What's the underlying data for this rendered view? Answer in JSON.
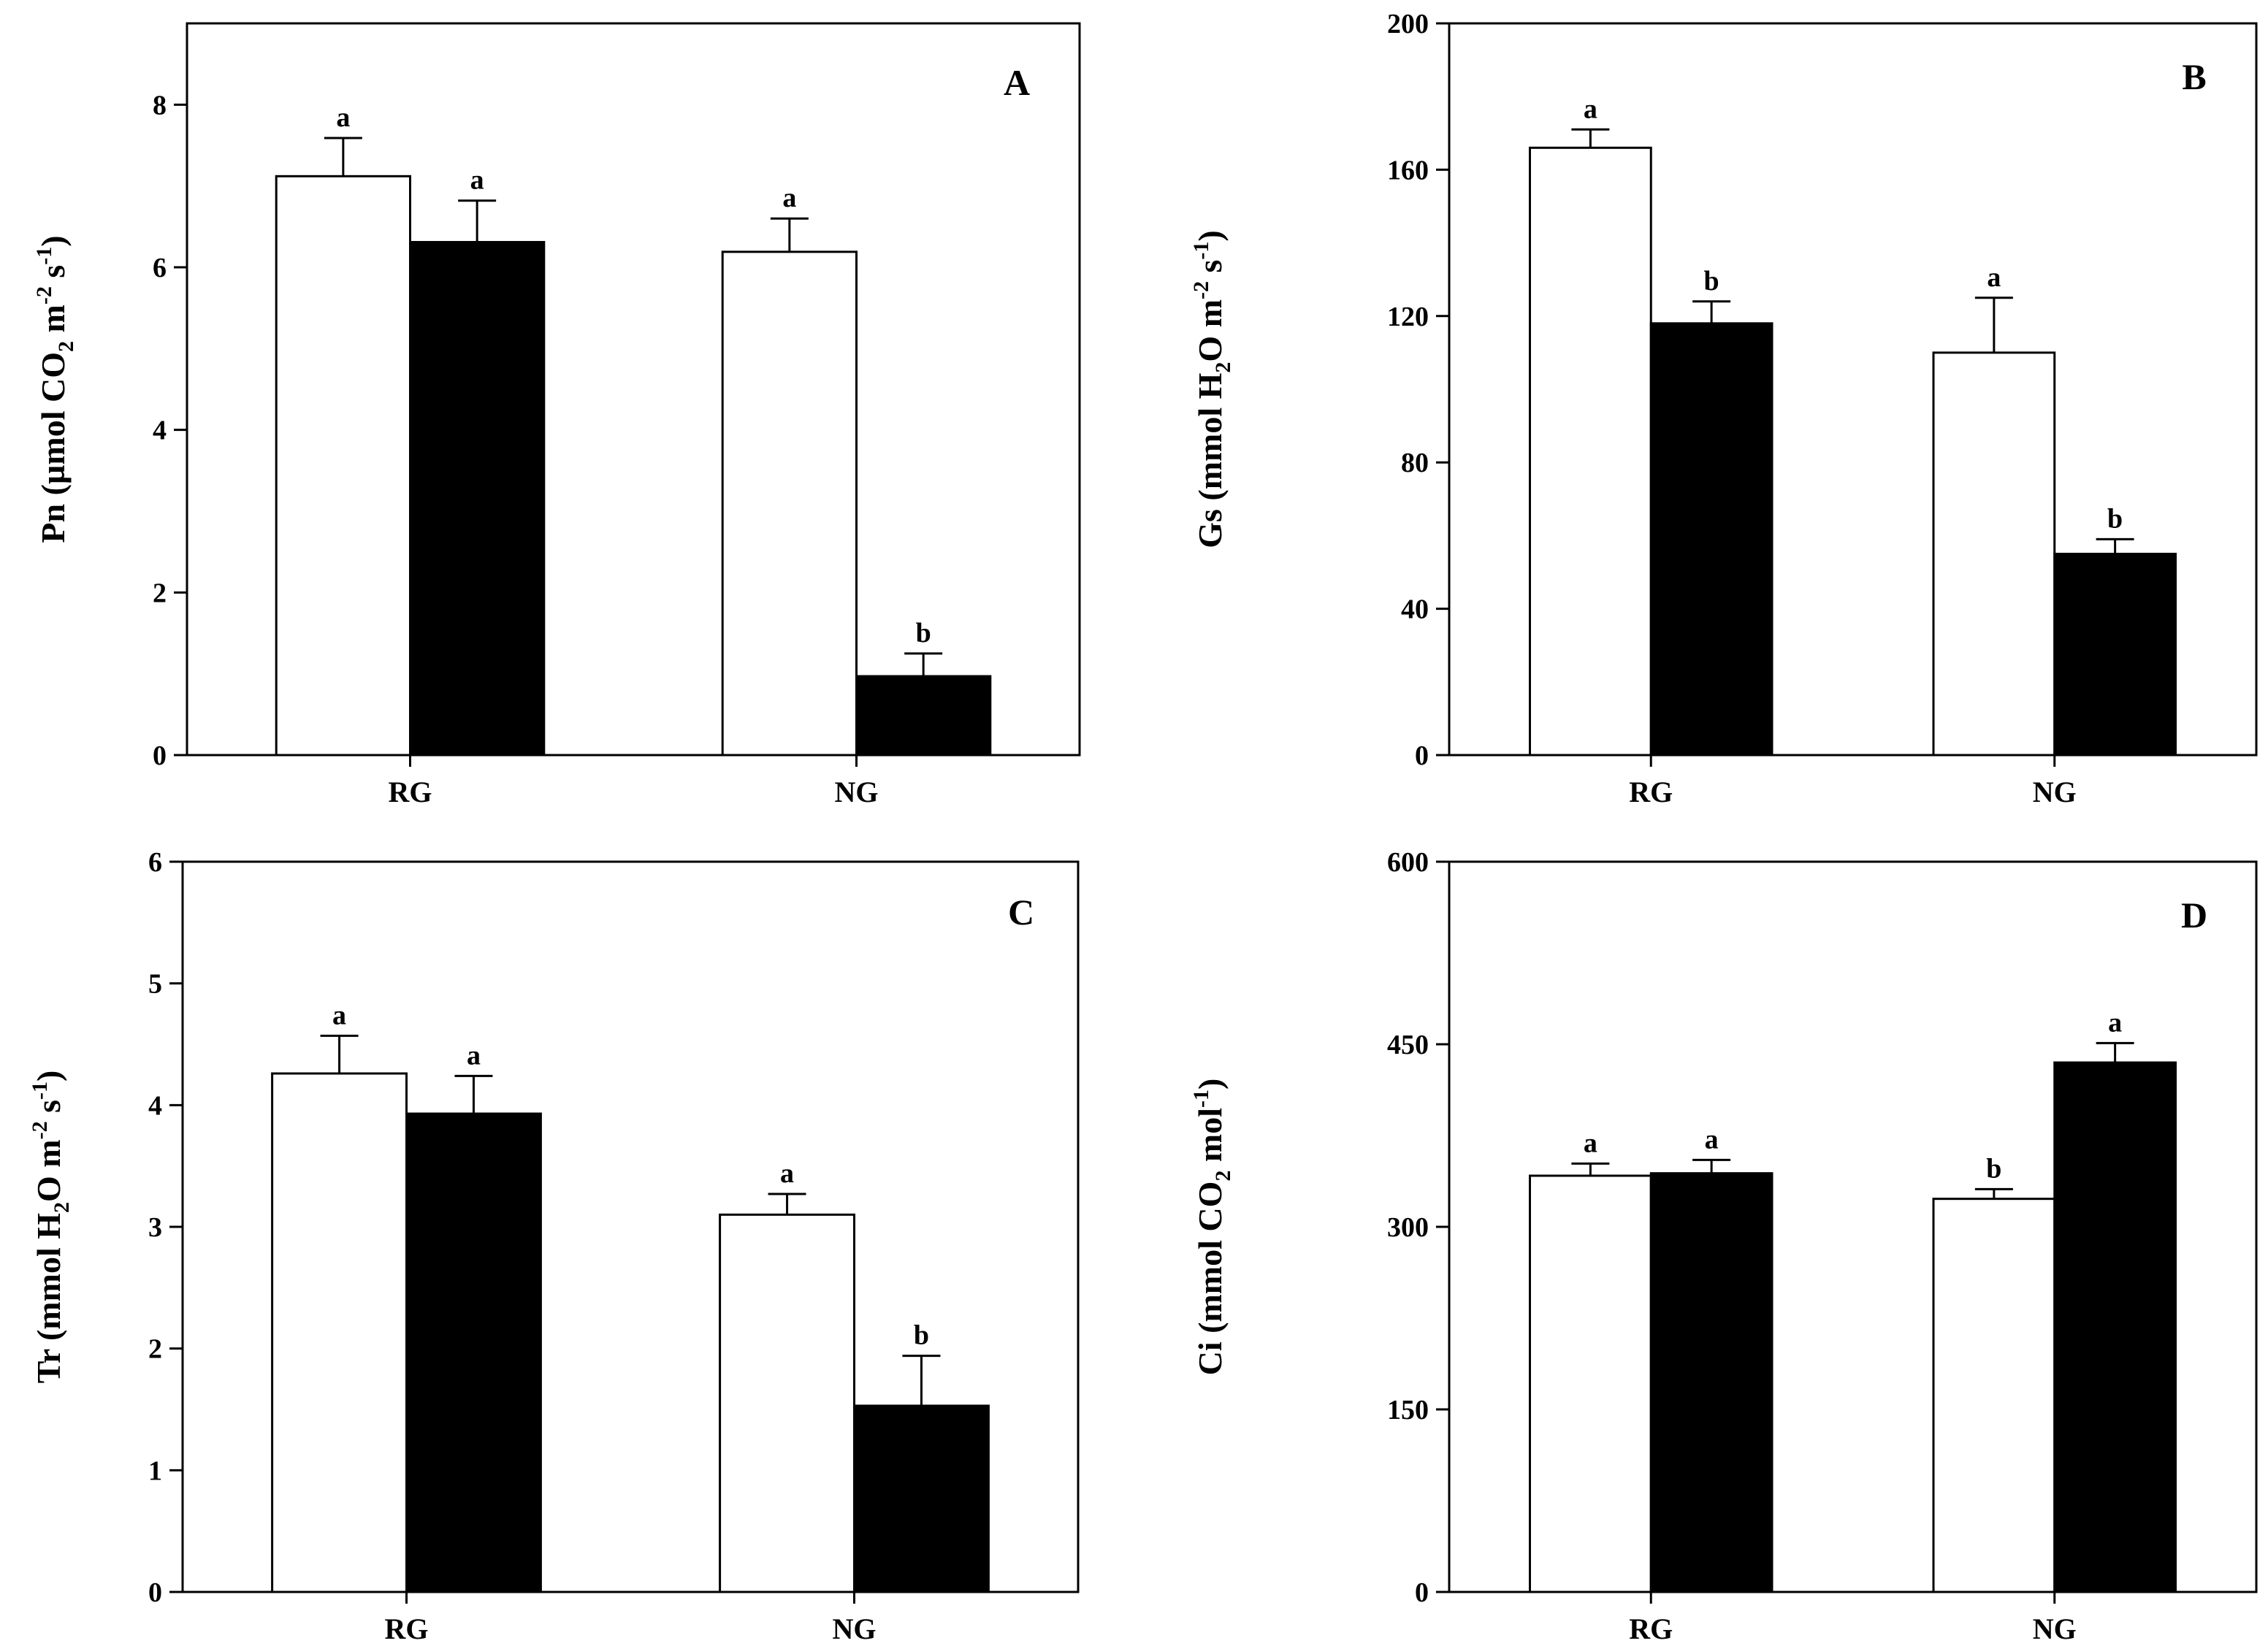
{
  "chart_data": [
    {
      "type": "bar",
      "panel": "A",
      "ylabel_parts": [
        "Pn (µmol CO",
        "2",
        " m",
        "-2",
        " s",
        "-1",
        ")"
      ],
      "ylim": [
        0,
        9
      ],
      "yticks": [
        0,
        2,
        4,
        6,
        8
      ],
      "categories": [
        "RG",
        "NG"
      ],
      "series": [
        {
          "name": "white",
          "color": "#ffffff",
          "values": [
            7.12,
            6.19
          ],
          "errors": [
            0.47,
            0.41
          ],
          "letters": [
            "a",
            "a"
          ]
        },
        {
          "name": "black",
          "color": "#000000",
          "values": [
            6.31,
            0.97
          ],
          "errors": [
            0.51,
            0.28
          ],
          "letters": [
            "a",
            "b"
          ]
        }
      ]
    },
    {
      "type": "bar",
      "panel": "B",
      "ylabel_parts": [
        "Gs (mmol H",
        "2",
        "O m",
        "-2",
        " s",
        "-1",
        ")"
      ],
      "ylim": [
        0,
        200
      ],
      "yticks": [
        0,
        40,
        80,
        120,
        160,
        200
      ],
      "categories": [
        "RG",
        "NG"
      ],
      "series": [
        {
          "name": "white",
          "color": "#ffffff",
          "values": [
            166,
            110
          ],
          "errors": [
            5,
            15
          ],
          "letters": [
            "a",
            "a"
          ]
        },
        {
          "name": "black",
          "color": "#000000",
          "values": [
            118,
            55
          ],
          "errors": [
            6,
            4
          ],
          "letters": [
            "b",
            "b"
          ]
        }
      ]
    },
    {
      "type": "bar",
      "panel": "C",
      "ylabel_parts": [
        "Tr (mmol H",
        "2",
        "O m",
        "-2",
        " s",
        "-1",
        ")"
      ],
      "ylim": [
        0,
        6
      ],
      "yticks": [
        0,
        1,
        2,
        3,
        4,
        5,
        6
      ],
      "categories": [
        "RG",
        "NG"
      ],
      "series": [
        {
          "name": "white",
          "color": "#ffffff",
          "values": [
            4.26,
            3.1
          ],
          "errors": [
            0.31,
            0.17
          ],
          "letters": [
            "a",
            "a"
          ]
        },
        {
          "name": "black",
          "color": "#000000",
          "values": [
            3.93,
            1.53
          ],
          "errors": [
            0.31,
            0.41
          ],
          "letters": [
            "a",
            "b"
          ]
        }
      ]
    },
    {
      "type": "bar",
      "panel": "D",
      "ylabel_parts": [
        "Ci (mmol CO",
        "2",
        " mol",
        "-1",
        ")"
      ],
      "ylim": [
        0,
        600
      ],
      "yticks": [
        0,
        150,
        300,
        450,
        600
      ],
      "categories": [
        "RG",
        "NG"
      ],
      "series": [
        {
          "name": "white",
          "color": "#ffffff",
          "values": [
            342,
            323
          ],
          "errors": [
            10,
            8
          ],
          "letters": [
            "a",
            "b"
          ]
        },
        {
          "name": "black",
          "color": "#000000",
          "values": [
            344,
            435
          ],
          "errors": [
            11,
            16
          ],
          "letters": [
            "a",
            "a"
          ]
        }
      ]
    }
  ]
}
